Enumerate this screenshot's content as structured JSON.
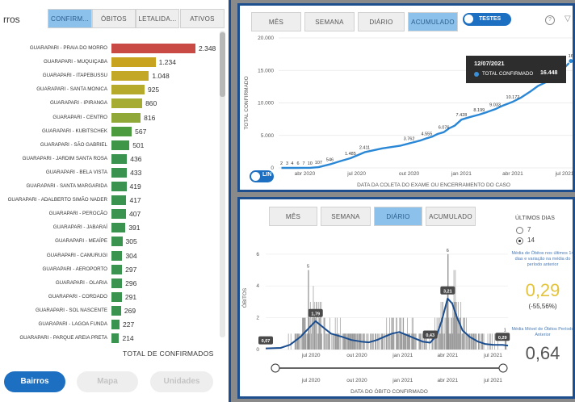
{
  "left_panel": {
    "title": "rros",
    "tabs": [
      "CONFIRM...",
      "ÓBITOS",
      "LETALIDA...",
      "ATIVOS"
    ],
    "active_tab": 0,
    "total_label": "TOTAL DE CONFIRMADOS",
    "buttons": [
      "Bairros",
      "Mapa",
      "Unidades"
    ],
    "chart_data": {
      "type": "bar",
      "orientation": "horizontal",
      "categories": [
        "GUARAPARI - PRAIA DO MORRO",
        "GUARAPARI - MUQUIÇABA",
        "GUARAPARI - ITAPEBUSSU",
        "GUARAPARI - SANTA MONICA",
        "GUARAPARI - IPIRANGA",
        "GUARAPARI - CENTRO",
        "GUARAPARI - KUBITSCHEK",
        "GUARAPARI - SÃO GABRIEL",
        "GUARAPARI - JARDIM SANTA ROSA",
        "GUARAPARI - BELA VISTA",
        "GUARAPARI - SANTA MARGARIDA",
        "GUARAPARI - ADALBERTO SIMÃO NADER",
        "GUARAPARI - PEROCÃO",
        "GUARAPARI - JABARAÍ",
        "GUARAPARI - MEAÍPE",
        "GUARAPARI - CAMURUGI",
        "GUARAPARI - AEROPORTO",
        "GUARAPARI - OLARIA",
        "GUARAPARI - CORDADO",
        "GUARAPARI - SOL NASCENTE",
        "GUARAPARI - LAGOA FUNDA",
        "GUARAPARI - PARQUE AREIA PRETA"
      ],
      "values": [
        2348,
        1234,
        1048,
        925,
        860,
        816,
        567,
        501,
        436,
        433,
        419,
        417,
        407,
        391,
        305,
        304,
        297,
        296,
        291,
        269,
        227,
        214
      ],
      "value_labels": [
        "2.348",
        "1.234",
        "1.048",
        "925",
        "860",
        "816",
        "567",
        "501",
        "436",
        "433",
        "419",
        "417",
        "407",
        "391",
        "305",
        "304",
        "297",
        "296",
        "291",
        "269",
        "227",
        "214"
      ],
      "colors": [
        "#c94a45",
        "#c8a320",
        "#c2a826",
        "#b5aa2c",
        "#a6ab32",
        "#8fa838",
        "#4c9b3f",
        "#3f9648",
        "#3a9450",
        "#3a9450",
        "#3a9450",
        "#3a9450",
        "#3a9450",
        "#3a9450",
        "#3a9450",
        "#3a9450",
        "#3a9450",
        "#3a9450",
        "#3a9450",
        "#3a9450",
        "#3a9450",
        "#3a9450"
      ],
      "xlabel": "TOTAL DE CONFIRMADOS"
    }
  },
  "top_right": {
    "tabs": [
      "MÊS",
      "SEMANA",
      "DIÁRIO",
      "ACUMULADO"
    ],
    "active_tab": 3,
    "toggle_label": "TESTES",
    "lin_label": "LIN",
    "icons": [
      "help-icon",
      "filter-icon"
    ],
    "tooltip": {
      "date": "12/07/2021",
      "series": "TOTAL CONFIRMADO",
      "value": "16.448"
    },
    "chart_data": {
      "type": "line",
      "ylabel": "TOTAL CONFIRMADO",
      "xlabel": "DATA DA COLETA DO EXAME OU ENCERRAMENTO DO CASO",
      "yticks": [
        "0",
        "5.000",
        "10.000",
        "15.000",
        "20.000"
      ],
      "ylim": [
        0,
        20000
      ],
      "xticks": [
        "abr 2020",
        "jul 2020",
        "out 2020",
        "jan 2021",
        "abr 2021",
        "jul 2021"
      ],
      "xlim": [
        "2020-02-15",
        "2021-07-15"
      ],
      "x": [
        "2020-02-20",
        "2020-03-01",
        "2020-03-10",
        "2020-03-20",
        "2020-03-30",
        "2020-04-10",
        "2020-04-25",
        "2020-05-15",
        "2020-06-01",
        "2020-06-20",
        "2020-07-15",
        "2020-08-15",
        "2020-09-15",
        "2020-10-01",
        "2020-10-20",
        "2020-11-01",
        "2020-11-10",
        "2020-11-20",
        "2020-12-01",
        "2020-12-10",
        "2020-12-20",
        "2021-01-01",
        "2021-01-15",
        "2021-02-01",
        "2021-02-15",
        "2021-03-01",
        "2021-03-15",
        "2021-04-01",
        "2021-04-15",
        "2021-05-01",
        "2021-05-15",
        "2021-06-01",
        "2021-06-20",
        "2021-07-12",
        "2021-07-15"
      ],
      "y": [
        2,
        3,
        4,
        6,
        7,
        10,
        107,
        546,
        1001,
        1485,
        2411,
        3000,
        3400,
        3762,
        4200,
        4555,
        4800,
        5213,
        5500,
        6076,
        6500,
        7428,
        7800,
        8199,
        8600,
        9033,
        9600,
        10172,
        10800,
        11700,
        12600,
        13300,
        14400,
        16448,
        16548
      ],
      "point_labels": [
        {
          "x": "2020-02-20",
          "text": "2"
        },
        {
          "x": "2020-03-01",
          "text": "3"
        },
        {
          "x": "2020-03-10",
          "text": "4"
        },
        {
          "x": "2020-03-20",
          "text": "6"
        },
        {
          "x": "2020-03-30",
          "text": "7"
        },
        {
          "x": "2020-04-10",
          "text": "10"
        },
        {
          "x": "2020-04-25",
          "text": "107"
        },
        {
          "x": "2020-05-15",
          "text": "546"
        },
        {
          "x": "2020-06-20",
          "text": "1.485"
        },
        {
          "x": "2020-07-15",
          "text": "2.411"
        },
        {
          "x": "2020-10-01",
          "text": "3.762"
        },
        {
          "x": "2020-11-01",
          "text": "4.555"
        },
        {
          "x": "2020-12-01",
          "text": "6.076"
        },
        {
          "x": "2021-01-01",
          "text": "7.428"
        },
        {
          "x": "2021-02-01",
          "text": "8.199"
        },
        {
          "x": "2021-03-01",
          "text": "9.033"
        },
        {
          "x": "2021-04-01",
          "text": "10.172"
        },
        {
          "x": "2021-07-15",
          "text": "16.5"
        }
      ]
    }
  },
  "bottom_right": {
    "tabs": [
      "MÊS",
      "SEMANA",
      "DIÁRIO",
      "ACUMULADO"
    ],
    "active_tab": 2,
    "ultimos_label": "ÚLTIMOS DIAS",
    "radio_options": [
      "7",
      "14"
    ],
    "selected_radio": 1,
    "kpi1_desc": "Média de Óbitos nos últimos 14 dias e variação na média do período anterior",
    "kpi1_value": "0,29",
    "kpi1_change": "(-55,56%)",
    "kpi2_desc": "Média Móvel de Óbitos Período Anterior",
    "kpi2_value": "0,64",
    "chart_data": {
      "type": "bar",
      "ylabel": "ÓBITOS",
      "xlabel": "DATA DO ÓBITO CONFIRMADO",
      "yticks": [
        "0",
        "2",
        "4",
        "6"
      ],
      "ylim": [
        0,
        6.5
      ],
      "xticks": [
        "jul 2020",
        "out 2020",
        "jan 2021",
        "abr 2021",
        "jul 2021"
      ],
      "xlim": [
        "2020-04-01",
        "2021-07-31"
      ],
      "peak_labels": [
        {
          "x": "2020-06-25",
          "text": "5"
        },
        {
          "x": "2021-04-01",
          "text": "6"
        },
        {
          "x": "2021-07-25",
          "text": "1"
        }
      ],
      "moving_average": {
        "x": [
          "2020-04-01",
          "2020-05-01",
          "2020-05-20",
          "2020-06-10",
          "2020-06-25",
          "2020-07-10",
          "2020-07-25",
          "2020-08-10",
          "2020-09-01",
          "2020-09-20",
          "2020-10-10",
          "2020-10-25",
          "2020-11-10",
          "2020-11-25",
          "2020-12-10",
          "2020-12-25",
          "2021-01-10",
          "2021-01-25",
          "2021-02-10",
          "2021-02-25",
          "2021-03-10",
          "2021-03-20",
          "2021-04-01",
          "2021-04-10",
          "2021-04-20",
          "2021-05-01",
          "2021-05-15",
          "2021-06-01",
          "2021-06-15",
          "2021-07-01",
          "2021-07-20",
          "2021-07-31"
        ],
        "y": [
          0.07,
          0.1,
          0.3,
          0.8,
          1.3,
          1.79,
          1.4,
          1.0,
          0.8,
          0.6,
          0.5,
          0.45,
          0.6,
          0.8,
          1.0,
          1.1,
          0.9,
          0.7,
          0.5,
          0.43,
          0.9,
          1.8,
          3.21,
          2.9,
          2.0,
          1.2,
          0.8,
          0.5,
          0.35,
          0.3,
          0.29,
          0.25
        ],
        "labels": [
          {
            "x": "2020-04-01",
            "text": "0,07"
          },
          {
            "x": "2020-07-10",
            "text": "1,79"
          },
          {
            "x": "2021-02-25",
            "text": "0,43"
          },
          {
            "x": "2021-04-01",
            "text": "3,21"
          },
          {
            "x": "2021-07-20",
            "text": "0,29"
          }
        ]
      }
    }
  }
}
